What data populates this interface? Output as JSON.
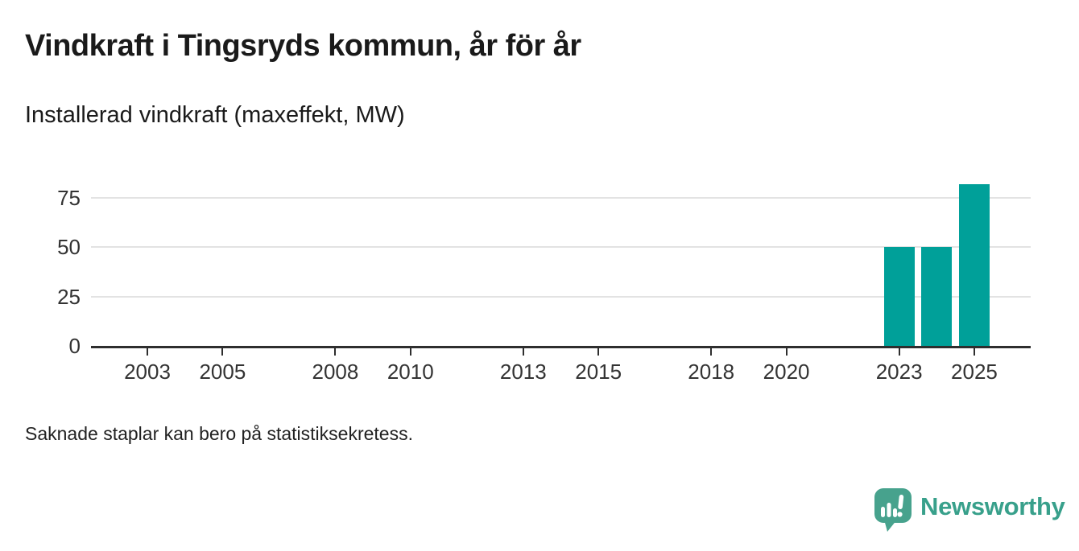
{
  "chart_data": {
    "type": "bar",
    "title": "Vindkraft i Tingsryds kommun, år för år",
    "subtitle": "Installerad vindkraft (maxeffekt, MW)",
    "ylabel_unit": "MW",
    "x_domain": [
      2002,
      2026
    ],
    "x_tick_labels": [
      "2003",
      "2005",
      "2008",
      "2010",
      "2013",
      "2015",
      "2018",
      "2020",
      "2023",
      "2025"
    ],
    "y_ticks": [
      0,
      25,
      50,
      75
    ],
    "ylim": [
      0,
      90
    ],
    "grid": "horizontal",
    "legend": "none",
    "bars": [
      {
        "year": 2023,
        "value": 50
      },
      {
        "year": 2024,
        "value": 50
      },
      {
        "year": 2025,
        "value": 82
      }
    ],
    "missing_note": "Saknade staplar kan bero på statistiksekretess."
  },
  "branding": {
    "wordmark": "Newsworthy",
    "icon": "newsworthy-speech-bubble-bar-chart-icon"
  },
  "colors": {
    "bar": "#00a099",
    "gridline": "#e3e3e3",
    "axis": "#2e2e2e",
    "tick_text": "#333333",
    "heading_text": "#1a1a1a",
    "logo_bubble": "#47a28d",
    "logo_wordmark": "#38a08b"
  }
}
